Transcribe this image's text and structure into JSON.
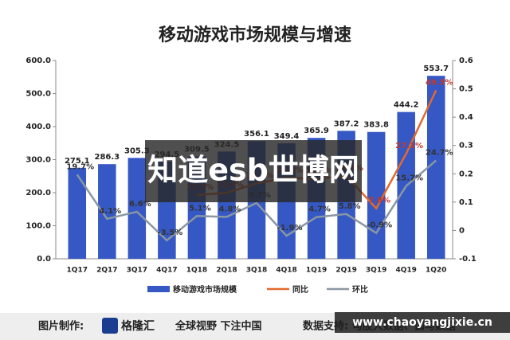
{
  "chart_data": {
    "type": "bar",
    "title": "移动游戏市场规模与增速",
    "categories": [
      "1Q17",
      "2Q17",
      "3Q17",
      "4Q17",
      "1Q18",
      "2Q18",
      "3Q18",
      "4Q18",
      "1Q19",
      "2Q19",
      "3Q19",
      "4Q19",
      "1Q20"
    ],
    "series": [
      {
        "name": "移动游戏市场规模",
        "color": "#3558c4",
        "type": "bar",
        "values": [
          275.1,
          286.3,
          305.3,
          294.5,
          309.5,
          324.5,
          356.1,
          349.4,
          365.9,
          387.2,
          383.8,
          444.2,
          553.7
        ]
      },
      {
        "name": "同比",
        "color": "#e2692c",
        "type": "line",
        "axis": "y2",
        "label_color": "#c0392b",
        "values": [
          null,
          null,
          null,
          null,
          0.125,
          0.133,
          0.166,
          0.186,
          0.182,
          0.193,
          0.078,
          0.271,
          0.495
        ],
        "value_labels": [
          null,
          null,
          null,
          null,
          "12.5%",
          "13.3%",
          "16.6%",
          "18.6%",
          "18.2%",
          "19.3%",
          "7.8%",
          "27.1%",
          "49.5%"
        ]
      },
      {
        "name": "环比",
        "color": "#8a96a3",
        "type": "line",
        "axis": "y2",
        "label_color": "#333333",
        "values": [
          0.197,
          0.041,
          0.066,
          -0.035,
          0.051,
          0.048,
          0.097,
          -0.019,
          0.047,
          0.058,
          -0.009,
          0.157,
          0.247
        ],
        "value_labels": [
          "19.7%",
          "4.1%",
          "6.6%",
          "-3.5%",
          "5.1%",
          "4.8%",
          "9.7%",
          "-1.9%",
          "4.7%",
          "5.8%",
          "-0.9%",
          "15.7%",
          "24.7%"
        ]
      }
    ],
    "ylim": [
      0,
      600
    ],
    "yticks": [
      {
        "value": 0,
        "label": "0.0"
      },
      {
        "value": 100,
        "label": "100.0"
      },
      {
        "value": 200,
        "label": "200.0"
      },
      {
        "value": 300,
        "label": "300.0"
      },
      {
        "value": 400,
        "label": "400.0"
      },
      {
        "value": 500,
        "label": "500.0"
      },
      {
        "value": 600,
        "label": "600.0"
      }
    ],
    "y2lim": [
      -0.1,
      0.6
    ],
    "y2ticks": [
      -0.1,
      0,
      0.1,
      0.2,
      0.3,
      0.4,
      0.5,
      0.6
    ],
    "legend": "bottom"
  },
  "watermark": "知道esb世博网",
  "footer": {
    "made_by": "图片制作:",
    "logo": "格隆汇",
    "slogan": "全球视野 下注中国",
    "data_source": "数据支持: 勾股大数据、伽马数据",
    "url": "www.chaoyangjixie.cn"
  }
}
